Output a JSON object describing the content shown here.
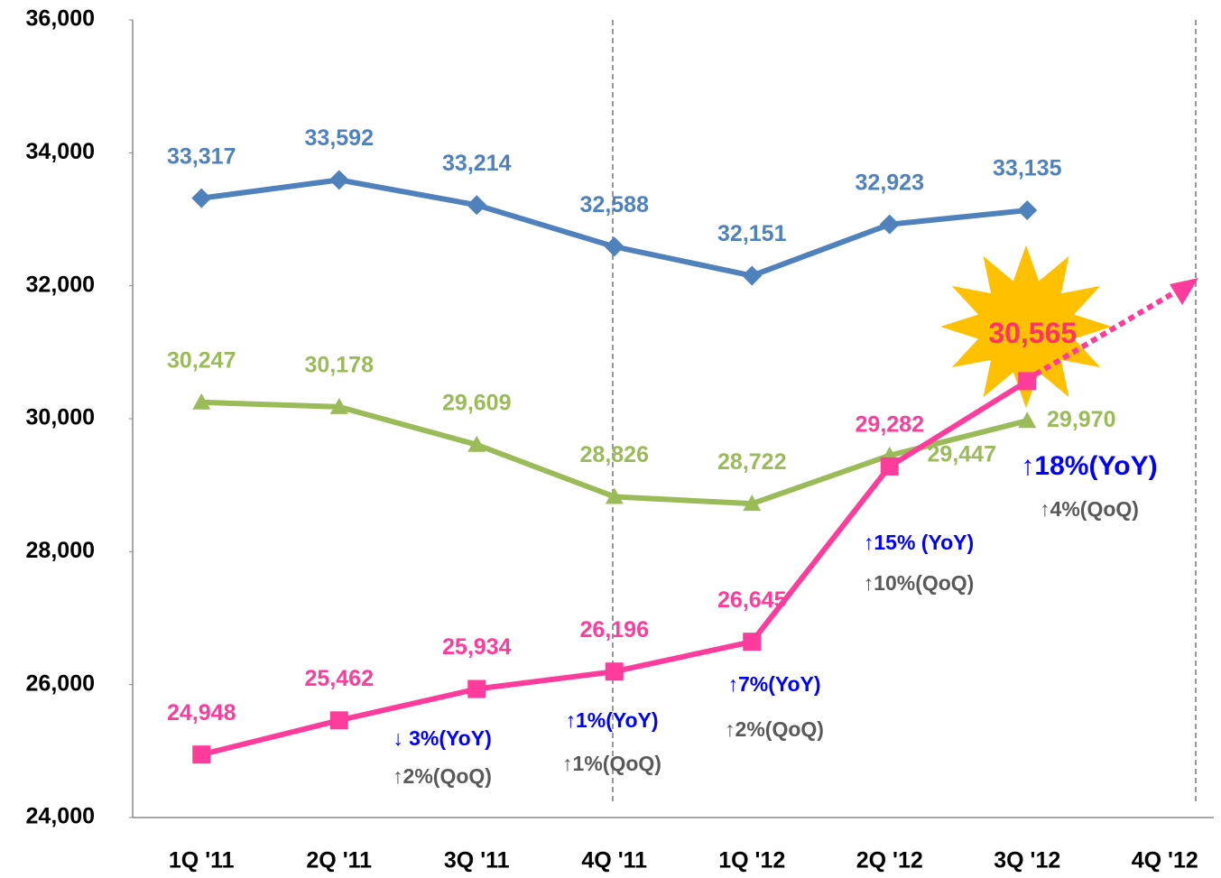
{
  "chart_data": {
    "type": "line",
    "categories": [
      "1Q '11",
      "2Q '11",
      "3Q '11",
      "4Q '11",
      "1Q '12",
      "2Q '12",
      "3Q '12",
      "4Q '12"
    ],
    "series": [
      {
        "color": "#4f81bd",
        "marker": "diamond",
        "values": [
          33317,
          33592,
          33214,
          32588,
          32151,
          32923,
          33135,
          null
        ],
        "value_labels": [
          "33,317",
          "33,592",
          "33,214",
          "32,588",
          "32,151",
          "32,923",
          "33,135",
          null
        ]
      },
      {
        "color": "#9bbb59",
        "marker": "triangle",
        "values": [
          30247,
          30178,
          29609,
          28826,
          28722,
          29447,
          29970,
          null
        ],
        "value_labels": [
          "30,247",
          "30,178",
          "29,609",
          "28,826",
          "28,722",
          "29,447",
          "29,970",
          null
        ]
      },
      {
        "color": "#ff3c9c",
        "marker": "square",
        "values": [
          24948,
          25462,
          25934,
          26196,
          26645,
          29282,
          30565,
          null
        ],
        "value_labels": [
          "24,948",
          "25,462",
          "25,934",
          "26,196",
          "26,645",
          "29,282",
          "30,565",
          null
        ]
      }
    ],
    "annotations": [
      {
        "yoy": "↓ 3%(YoY)",
        "qoq": "↑2%(QoQ)"
      },
      {
        "yoy": "↑1%(YoY)",
        "qoq": "↑1%(QoQ)"
      },
      {
        "yoy": "↑7%(YoY)",
        "qoq": "↑2%(QoQ)"
      },
      {
        "yoy": "↑15% (YoY)",
        "qoq": "↑10%(QoQ)"
      },
      {
        "yoy": "↑18%(YoY)",
        "qoq": "↑4%(QoQ)"
      }
    ],
    "ylim": [
      24000,
      36000
    ],
    "yticks": [
      {
        "value": 24000,
        "label": "24,000"
      },
      {
        "value": 26000,
        "label": "26,000"
      },
      {
        "value": 28000,
        "label": "28,000"
      },
      {
        "value": 30000,
        "label": "30,000"
      },
      {
        "value": 32000,
        "label": "32,000"
      },
      {
        "value": 34000,
        "label": "34,000"
      },
      {
        "value": 36000,
        "label": "36,000"
      }
    ],
    "grid": false
  }
}
